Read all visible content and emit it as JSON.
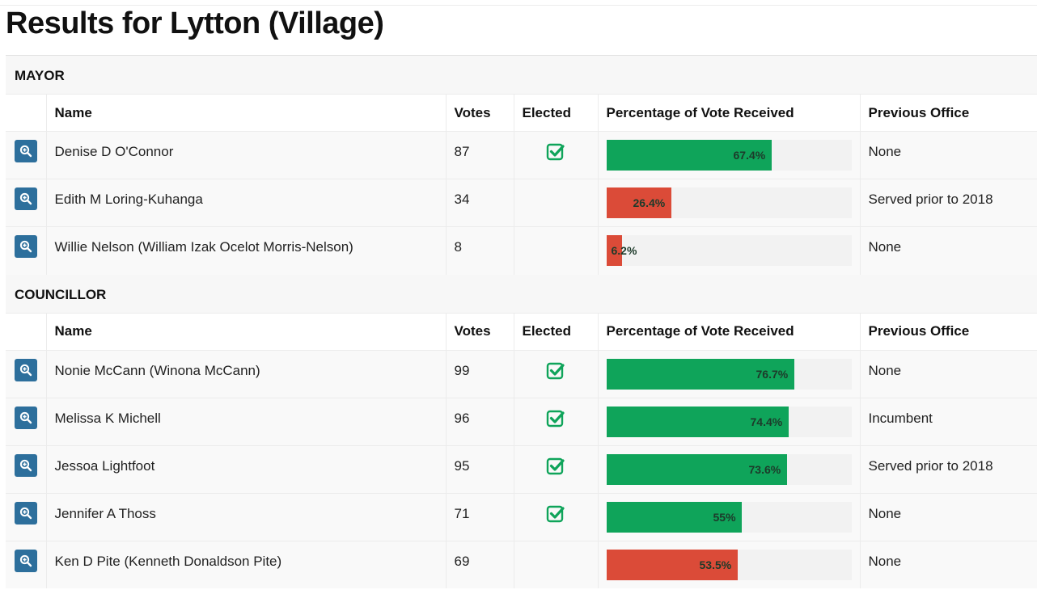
{
  "page": {
    "title": "Results for Lytton (Village)"
  },
  "columns": {
    "name": "Name",
    "votes": "Votes",
    "elected": "Elected",
    "percentage": "Percentage of Vote Received",
    "previous": "Previous Office"
  },
  "icons": {
    "zoom": "zoom-in-icon",
    "check": "check-square-icon"
  },
  "colors": {
    "elected_bar": "#0fa45a",
    "not_elected_bar": "#db4b38",
    "button": "#2d6f9c",
    "check": "#0fa45a"
  },
  "sections": [
    {
      "title": "MAYOR",
      "candidates": [
        {
          "name": "Denise D O'Connor",
          "votes": "87",
          "elected": true,
          "percent": 67.4,
          "percent_label": "67.4%",
          "previous": "None"
        },
        {
          "name": "Edith M Loring-Kuhanga",
          "votes": "34",
          "elected": false,
          "percent": 26.4,
          "percent_label": "26.4%",
          "previous": "Served prior to 2018"
        },
        {
          "name": "Willie Nelson (William Izak Ocelot Morris-Nelson)",
          "votes": "8",
          "elected": false,
          "percent": 6.2,
          "percent_label": "6.2%",
          "previous": "None"
        }
      ]
    },
    {
      "title": "COUNCILLOR",
      "candidates": [
        {
          "name": "Nonie McCann (Winona McCann)",
          "votes": "99",
          "elected": true,
          "percent": 76.7,
          "percent_label": "76.7%",
          "previous": "None"
        },
        {
          "name": "Melissa K Michell",
          "votes": "96",
          "elected": true,
          "percent": 74.4,
          "percent_label": "74.4%",
          "previous": "Incumbent"
        },
        {
          "name": "Jessoa Lightfoot",
          "votes": "95",
          "elected": true,
          "percent": 73.6,
          "percent_label": "73.6%",
          "previous": "Served prior to 2018"
        },
        {
          "name": "Jennifer A Thoss",
          "votes": "71",
          "elected": true,
          "percent": 55,
          "percent_label": "55%",
          "previous": "None"
        },
        {
          "name": "Ken D Pite (Kenneth Donaldson Pite)",
          "votes": "69",
          "elected": false,
          "percent": 53.5,
          "percent_label": "53.5%",
          "previous": "None"
        }
      ]
    }
  ]
}
